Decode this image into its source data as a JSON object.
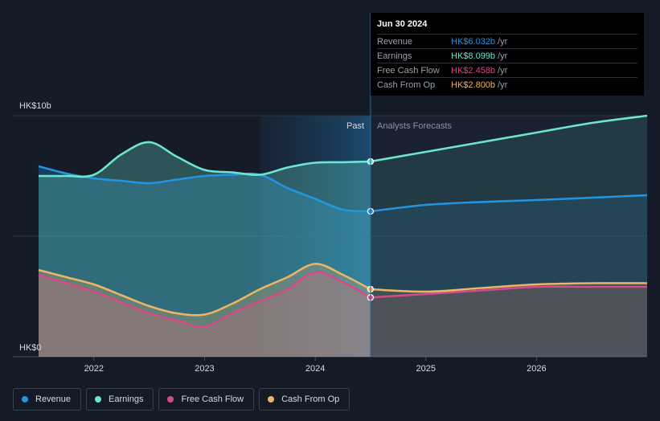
{
  "chart_data": {
    "type": "area",
    "x": [
      2021.5,
      2021.75,
      2022.0,
      2022.25,
      2022.5,
      2022.75,
      2023.0,
      2023.25,
      2023.5,
      2023.75,
      2024.0,
      2024.25,
      2024.5
    ],
    "forecast_x": [
      2024.5,
      2025.0,
      2025.5,
      2026.0,
      2026.5,
      2027.0
    ],
    "series": [
      {
        "name": "Revenue",
        "color": "#2394df",
        "values": [
          7.9,
          7.6,
          7.4,
          7.3,
          7.2,
          7.35,
          7.5,
          7.55,
          7.55,
          7.0,
          6.55,
          6.1,
          6.032
        ],
        "forecast": [
          6.032,
          6.3,
          6.42,
          6.5,
          6.6,
          6.7
        ]
      },
      {
        "name": "Earnings",
        "color": "#6ce5d3",
        "values": [
          7.5,
          7.5,
          7.55,
          8.4,
          8.9,
          8.3,
          7.75,
          7.65,
          7.55,
          7.85,
          8.05,
          8.07,
          8.099
        ],
        "forecast": [
          8.099,
          8.5,
          8.9,
          9.3,
          9.7,
          10.0
        ]
      },
      {
        "name": "Free Cash Flow",
        "color": "#d64a87",
        "values": [
          3.4,
          3.05,
          2.7,
          2.25,
          1.8,
          1.5,
          1.25,
          1.8,
          2.3,
          2.8,
          3.5,
          3.1,
          2.458
        ],
        "forecast": [
          2.458,
          2.6,
          2.75,
          2.9,
          2.9,
          2.9
        ]
      },
      {
        "name": "Cash From Op",
        "color": "#ebb466",
        "values": [
          3.6,
          3.3,
          3.0,
          2.55,
          2.1,
          1.8,
          1.75,
          2.2,
          2.8,
          3.3,
          3.85,
          3.4,
          2.8
        ],
        "forecast": [
          2.8,
          2.7,
          2.85,
          3.0,
          3.05,
          3.05
        ]
      }
    ],
    "ylim": [
      0,
      10
    ],
    "xlim": [
      2021.5,
      2027.0
    ],
    "forecast_start": 2024.5,
    "highlight_start": 2023.5,
    "x_ticks": [
      2022,
      2023,
      2024,
      2025,
      2026
    ],
    "x_tick_labels": [
      "2022",
      "2023",
      "2024",
      "2025",
      "2026"
    ],
    "y_top_label": "HK$10b",
    "y_bottom_label": "HK$0",
    "past_label": "Past",
    "forecast_label": "Analysts Forecasts",
    "grid": true,
    "legend_position": "bottom-left"
  },
  "tooltip": {
    "date": "Jun 30 2024",
    "rows": [
      {
        "name": "Revenue",
        "value": "HK$6.032b",
        "unit": "/yr",
        "color": "#2394df"
      },
      {
        "name": "Earnings",
        "value": "HK$8.099b",
        "unit": "/yr",
        "color": "#6ce5d3"
      },
      {
        "name": "Free Cash Flow",
        "value": "HK$2.458b",
        "unit": "/yr",
        "color": "#d64a87"
      },
      {
        "name": "Cash From Op",
        "value": "HK$2.800b",
        "unit": "/yr",
        "color": "#ebb466"
      }
    ]
  },
  "legend": [
    {
      "label": "Revenue",
      "color": "#2394df"
    },
    {
      "label": "Earnings",
      "color": "#6ce5d3"
    },
    {
      "label": "Free Cash Flow",
      "color": "#d64a87"
    },
    {
      "label": "Cash From Op",
      "color": "#ebb466"
    }
  ]
}
